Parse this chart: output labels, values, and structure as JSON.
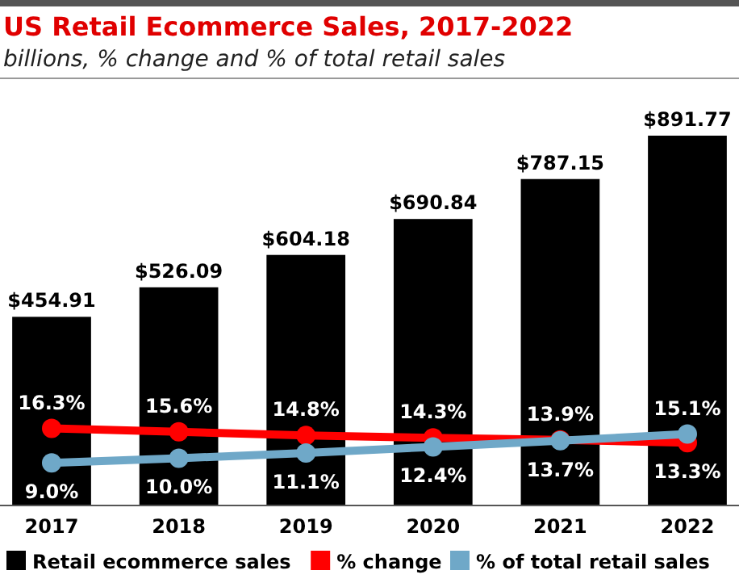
{
  "chart_data": {
    "type": "bar",
    "title": "US Retail Ecommerce Sales, 2017-2022",
    "subtitle": "billions, % change and % of total retail sales",
    "categories": [
      "2017",
      "2018",
      "2019",
      "2020",
      "2021",
      "2022"
    ],
    "series": [
      {
        "name": "Retail ecommerce sales",
        "color": "#000000",
        "values": [
          454.91,
          526.09,
          604.18,
          690.84,
          787.15,
          891.77
        ],
        "value_labels": [
          "$454.91",
          "$526.09",
          "$604.18",
          "$690.84",
          "$787.15",
          "$891.77"
        ]
      },
      {
        "name": "% change",
        "type": "line",
        "axis": "y2",
        "color": "#ff0000",
        "values": [
          16.3,
          15.6,
          14.8,
          14.3,
          13.9,
          13.3
        ],
        "value_labels": [
          "16.3%",
          "15.6%",
          "14.8%",
          "14.3%",
          "13.9%",
          "13.3%"
        ]
      },
      {
        "name": "% of total retail sales",
        "type": "line",
        "axis": "y2",
        "color": "#6fa8c8",
        "values": [
          9.0,
          10.0,
          11.1,
          12.4,
          13.7,
          15.1
        ],
        "value_labels": [
          "9.0%",
          "10.0%",
          "11.1%",
          "12.4%",
          "13.7%",
          "15.1%"
        ]
      }
    ],
    "marker": "circle",
    "legend": "bottom",
    "grid": false
  }
}
